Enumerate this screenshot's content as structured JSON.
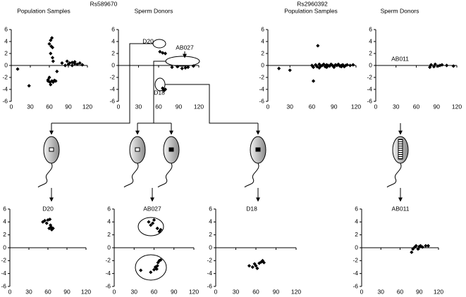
{
  "group_labels": [
    "Rs589670",
    "Rs2960392"
  ],
  "chart_data": [
    {
      "type": "scatter",
      "title": "Population Samples",
      "color": "#000000",
      "x": [
        10,
        28,
        60,
        62,
        64,
        63,
        65,
        62,
        65,
        66,
        58,
        60,
        61,
        62,
        64,
        66,
        68,
        70,
        72,
        80,
        88,
        92,
        96,
        100,
        104,
        108,
        112,
        96,
        100,
        90,
        85,
        58
      ],
      "y": [
        -0.6,
        -3.4,
        3.6,
        4.2,
        4.6,
        3.2,
        3.0,
        2.0,
        1.3,
        0.7,
        -2.4,
        -2.0,
        -2.8,
        -3.2,
        -2.6,
        -2.8,
        -2.5,
        -2.6,
        -1.0,
        0.4,
        0.7,
        0.4,
        0.5,
        0.3,
        0.2,
        0.4,
        0.1,
        0.0,
        0.6,
        0.2,
        0.0,
        -2.6
      ],
      "xlim": [
        0,
        120
      ],
      "ylim": [
        -6,
        6
      ],
      "xticks": [
        0,
        30,
        60,
        90,
        120
      ],
      "yticks": [
        -6,
        -4,
        -2,
        0,
        2,
        4,
        6
      ]
    },
    {
      "type": "scatter",
      "title": "Sperm Donors",
      "color": "#000000",
      "annotations": [
        "D20",
        "AB027",
        "D18"
      ],
      "x": [
        62,
        66,
        70,
        80,
        88,
        95,
        100,
        104,
        112,
        66,
        68,
        70
      ],
      "y": [
        2.3,
        2.1,
        2.0,
        -0.3,
        -0.2,
        -0.5,
        -0.4,
        -0.3,
        -0.1,
        -3.8,
        -4.2,
        -4.0
      ],
      "xlim": [
        0,
        120
      ],
      "ylim": [
        -6,
        6
      ],
      "xticks": [
        0,
        30,
        60,
        90,
        120
      ],
      "yticks": [
        -6,
        -4,
        -2,
        0,
        2,
        4,
        6
      ]
    },
    {
      "type": "scatter",
      "title": "Population Samples",
      "color": "#000000",
      "x": [
        15,
        30,
        62,
        68,
        60,
        62,
        65,
        67,
        70,
        72,
        74,
        76,
        78,
        80,
        82,
        84,
        86,
        88,
        90,
        92,
        94,
        96,
        98,
        100,
        102,
        104,
        106,
        108,
        112,
        116,
        70,
        80,
        90,
        100
      ],
      "y": [
        -0.5,
        -0.8,
        -2.6,
        3.3,
        0.0,
        -0.3,
        0.1,
        -0.2,
        0.2,
        -0.1,
        0.0,
        0.2,
        -0.2,
        0.1,
        0.0,
        -0.1,
        0.2,
        0.0,
        -0.2,
        0.1,
        0.0,
        0.2,
        -0.1,
        0.0,
        0.1,
        -0.2,
        0.0,
        0.1,
        0.0,
        0.1,
        -0.4,
        -0.3,
        -0.3,
        -0.2
      ],
      "xlim": [
        0,
        120
      ],
      "ylim": [
        -6,
        6
      ],
      "xticks": [
        0,
        30,
        60,
        90,
        120
      ],
      "yticks": [
        -6,
        -4,
        -2,
        0,
        2,
        4,
        6
      ]
    },
    {
      "type": "scatter",
      "title": "Sperm Donors",
      "color": "#000000",
      "annotations": [
        "AB011"
      ],
      "x": [
        80,
        82,
        86,
        88,
        92,
        95,
        98,
        105,
        115
      ],
      "y": [
        -0.3,
        0.1,
        -0.2,
        0.2,
        -0.1,
        0.0,
        0.1,
        0.0,
        -0.1
      ],
      "xlim": [
        0,
        120
      ],
      "ylim": [
        -6,
        6
      ],
      "xticks": [
        0,
        30,
        60,
        90,
        120
      ],
      "yticks": [
        -6,
        -4,
        -2,
        0,
        2,
        4,
        6
      ]
    },
    {
      "type": "scatter",
      "title": "D20",
      "color": "#000000",
      "x": [
        52,
        55,
        58,
        60,
        63,
        65,
        66,
        62,
        68,
        64
      ],
      "y": [
        4.0,
        4.2,
        3.8,
        4.3,
        4.4,
        3.2,
        2.8,
        3.0,
        3.0,
        3.5
      ],
      "xlim": [
        0,
        120
      ],
      "ylim": [
        -6,
        6
      ],
      "xticks": [
        0,
        30,
        60,
        90,
        120
      ],
      "yticks": [
        -6,
        -4,
        -2,
        0,
        2,
        4,
        6
      ]
    },
    {
      "type": "scatter",
      "title": "AB027",
      "color": "#000000",
      "x": [
        52,
        55,
        60,
        65,
        68,
        70,
        58,
        40,
        55,
        60,
        62,
        65,
        66,
        68,
        70,
        64
      ],
      "y": [
        4.0,
        3.5,
        4.3,
        3.0,
        2.5,
        2.8,
        3.8,
        -3.5,
        -3.8,
        -3.4,
        -3.0,
        -2.8,
        -2.3,
        -2.0,
        -1.9,
        -3.3
      ],
      "xlim": [
        0,
        120
      ],
      "ylim": [
        -6,
        6
      ],
      "xticks": [
        0,
        30,
        60,
        90,
        120
      ],
      "yticks": [
        -6,
        -4,
        -2,
        0,
        2,
        4,
        6
      ]
    },
    {
      "type": "scatter",
      "title": "D18",
      "color": "#000000",
      "x": [
        50,
        55,
        58,
        60,
        62,
        65,
        68,
        70,
        72
      ],
      "y": [
        -2.8,
        -3.0,
        -2.5,
        -2.8,
        -3.2,
        -2.4,
        -2.2,
        -2.0,
        -2.3
      ],
      "xlim": [
        0,
        120
      ],
      "ylim": [
        -6,
        6
      ],
      "xticks": [
        0,
        30,
        60,
        90,
        120
      ],
      "yticks": [
        -6,
        -4,
        -2,
        0,
        2,
        4,
        6
      ]
    },
    {
      "type": "scatter",
      "title": "AB011",
      "color": "#000000",
      "x": [
        78,
        80,
        83,
        85,
        88,
        90,
        92,
        95,
        100,
        104
      ],
      "y": [
        -0.7,
        -0.2,
        0.1,
        0.3,
        -0.2,
        0.2,
        0.3,
        0.1,
        0.3,
        0.3
      ],
      "xlim": [
        0,
        120
      ],
      "ylim": [
        -6,
        6
      ],
      "xticks": [
        0,
        30,
        60,
        90,
        120
      ],
      "yticks": [
        -6,
        -4,
        -2,
        0,
        2,
        4,
        6
      ]
    }
  ]
}
